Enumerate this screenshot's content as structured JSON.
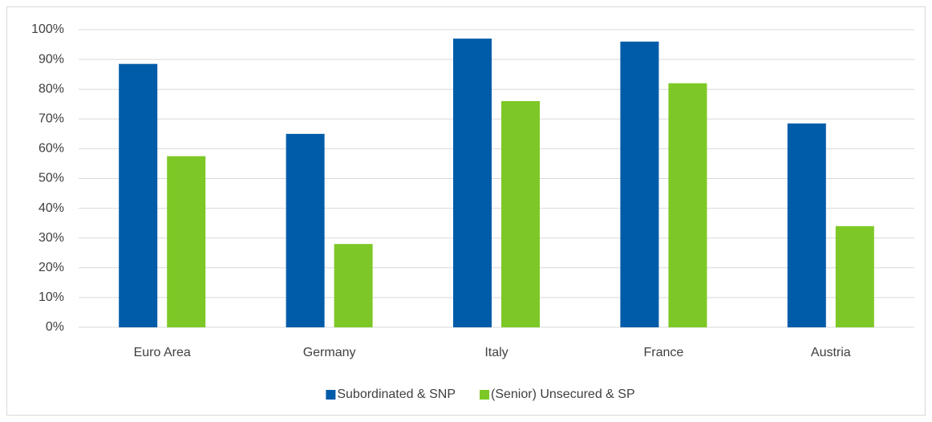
{
  "chart_data": {
    "type": "bar",
    "categories": [
      "Euro Area",
      "Germany",
      "Italy",
      "France",
      "Austria"
    ],
    "series": [
      {
        "name": "Subordinated & SNP",
        "color": "#005ca9",
        "values": [
          88.5,
          65,
          97,
          96,
          68.5
        ]
      },
      {
        "name": "(Senior) Unsecured & SP",
        "color": "#7dc826",
        "values": [
          57.5,
          28,
          76,
          82,
          34
        ]
      }
    ],
    "ylim": [
      0,
      100
    ],
    "yticks": [
      {
        "value": 0,
        "label": "0%"
      },
      {
        "value": 10,
        "label": "10%"
      },
      {
        "value": 20,
        "label": "20%"
      },
      {
        "value": 30,
        "label": "30%"
      },
      {
        "value": 40,
        "label": "40%"
      },
      {
        "value": 50,
        "label": "50%"
      },
      {
        "value": 60,
        "label": "60%"
      },
      {
        "value": 70,
        "label": "70%"
      },
      {
        "value": 80,
        "label": "80%"
      },
      {
        "value": 90,
        "label": "90%"
      },
      {
        "value": 100,
        "label": "100%"
      }
    ],
    "grid": true,
    "legend": "bottom"
  }
}
